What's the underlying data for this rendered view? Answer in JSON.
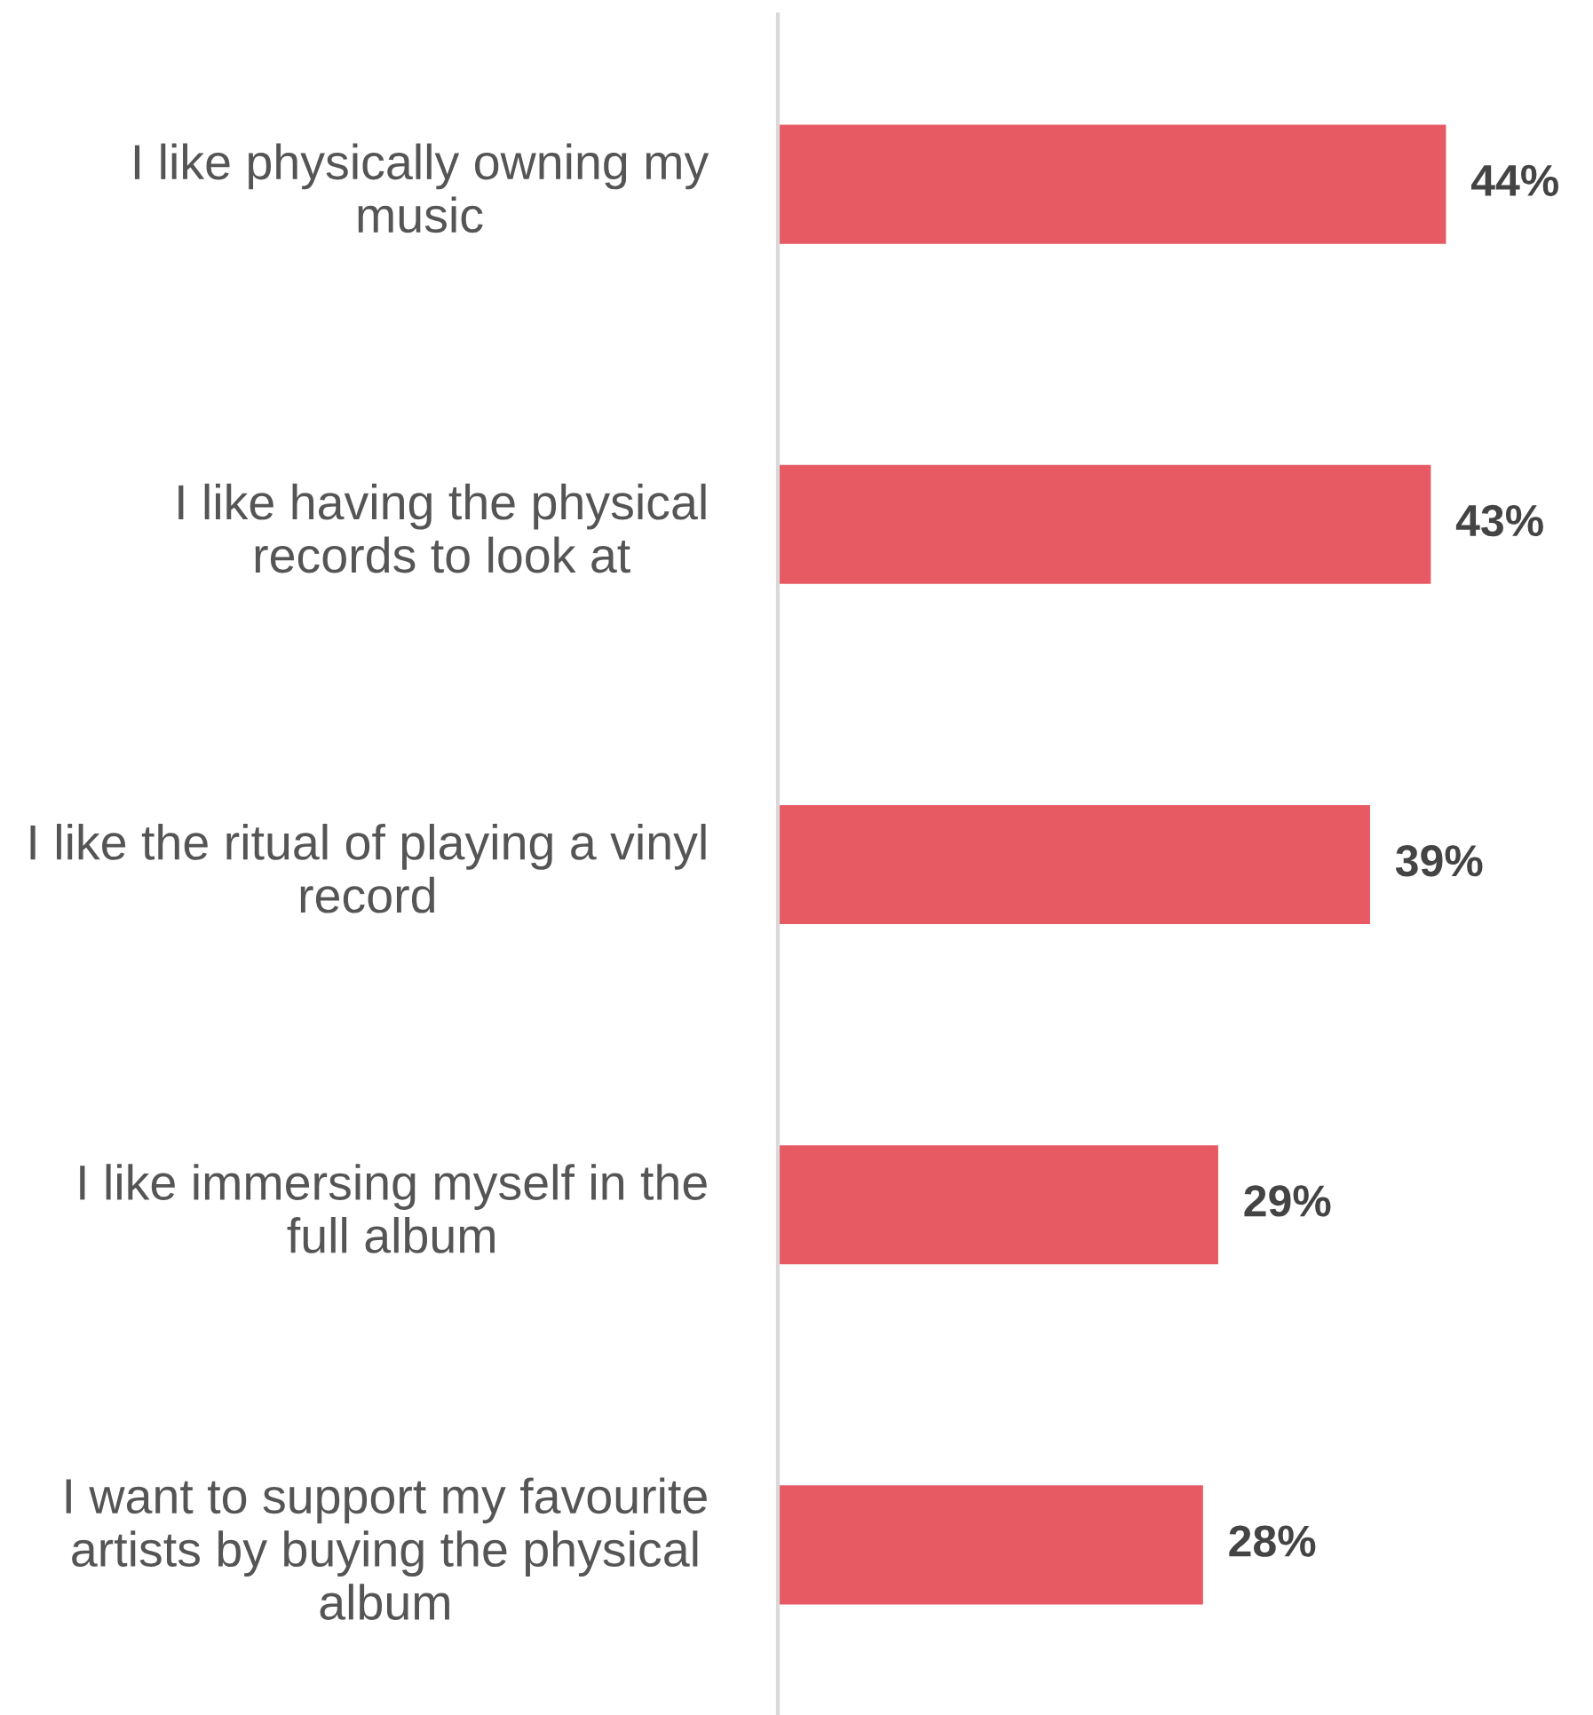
{
  "chart_data": {
    "type": "bar",
    "orientation": "horizontal",
    "categories": [
      "I like physically owning my music",
      "I like having the physical records to look at",
      "I like the ritual of playing a vinyl record",
      "I like immersing myself in the full album",
      "I want to support my favourite artists by buying the physical album"
    ],
    "values": [
      44,
      43,
      39,
      29,
      28
    ],
    "color": "#e85a63",
    "value_labels": [
      "44%",
      "43%",
      "39%",
      "29%",
      "28%"
    ],
    "grid": false,
    "legend": false
  }
}
